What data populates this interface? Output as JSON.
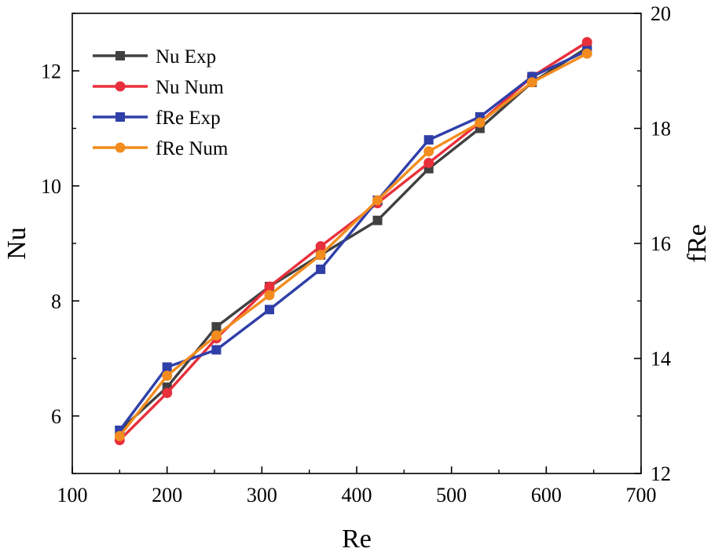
{
  "chart_data": {
    "type": "line",
    "xlabel": "Re",
    "ylabel_left": "Nu",
    "ylabel_right": "fRe",
    "xlim": [
      100,
      700
    ],
    "xticks": [
      100,
      200,
      300,
      400,
      500,
      600,
      700
    ],
    "ylim_left": [
      5,
      13
    ],
    "yticks_left": [
      6,
      8,
      10,
      12
    ],
    "ylim_right": [
      12,
      20
    ],
    "yticks_right": [
      12,
      14,
      16,
      18,
      20
    ],
    "grid": false,
    "legend_position": "top-left",
    "series": [
      {
        "name": "Nu Exp",
        "axis": "left",
        "marker": "square",
        "color": "#404040",
        "x": [
          150,
          200,
          252,
          308,
          362,
          422,
          476,
          530,
          585,
          643
        ],
        "y": [
          5.75,
          6.5,
          7.55,
          8.25,
          8.8,
          9.4,
          10.3,
          11.0,
          11.8,
          12.4
        ]
      },
      {
        "name": "Nu Num",
        "axis": "left",
        "marker": "circle",
        "color": "#e8303c",
        "x": [
          150,
          200,
          252,
          308,
          362,
          422,
          476,
          530,
          585,
          643
        ],
        "y": [
          5.58,
          6.4,
          7.35,
          8.25,
          8.95,
          9.7,
          10.4,
          11.1,
          11.9,
          12.5
        ]
      },
      {
        "name": "fRe Exp",
        "axis": "right",
        "marker": "square",
        "color": "#2f3fa8",
        "x": [
          150,
          200,
          252,
          308,
          362,
          422,
          476,
          530,
          585,
          643
        ],
        "y": [
          12.75,
          13.85,
          14.15,
          14.85,
          15.55,
          16.75,
          17.8,
          18.2,
          18.9,
          19.35
        ]
      },
      {
        "name": "fRe Num",
        "axis": "right",
        "marker": "circle",
        "color": "#f28c1e",
        "x": [
          150,
          200,
          252,
          308,
          362,
          422,
          476,
          530,
          585,
          643
        ],
        "y": [
          12.65,
          13.7,
          14.4,
          15.1,
          15.8,
          16.75,
          17.6,
          18.1,
          18.8,
          19.3
        ]
      }
    ]
  }
}
